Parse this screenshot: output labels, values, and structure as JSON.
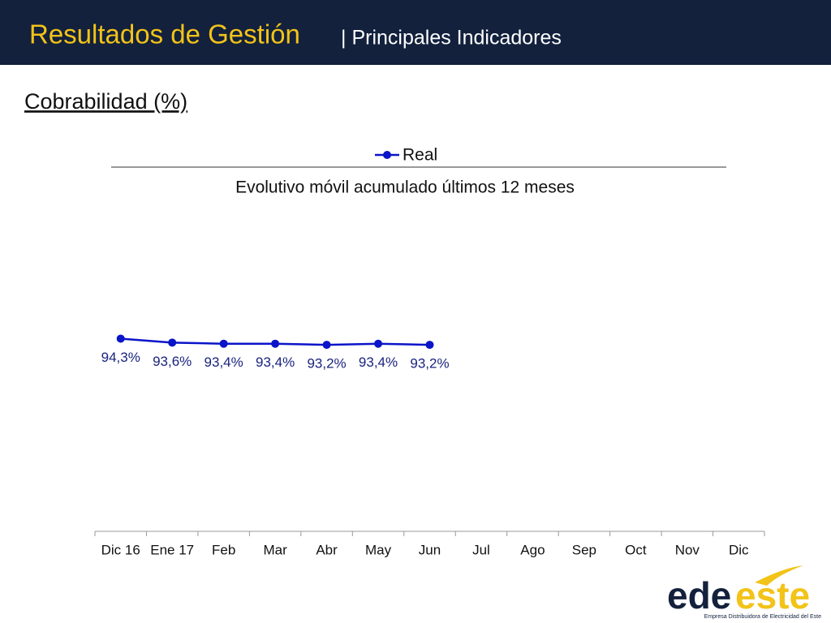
{
  "header": {
    "title": "Resultados de Gestión",
    "subtitle": "| Principales Indicadores"
  },
  "section_title": "Cobrabilidad (%)",
  "chart_data": {
    "type": "line",
    "title": "Evolutivo móvil acumulado últimos 12 meses",
    "categories": [
      "Dic 16",
      "Ene 17",
      "Feb",
      "Mar",
      "Abr",
      "May",
      "Jun",
      "Jul",
      "Ago",
      "Sep",
      "Oct",
      "Nov",
      "Dic"
    ],
    "series": [
      {
        "name": "Real",
        "color": "#0a14c8",
        "values": [
          94.3,
          93.6,
          93.4,
          93.4,
          93.2,
          93.4,
          93.2,
          null,
          null,
          null,
          null,
          null,
          null
        ],
        "value_labels": [
          "94,3%",
          "93,6%",
          "93,4%",
          "93,4%",
          "93,2%",
          "93,4%",
          "93,2%",
          null,
          null,
          null,
          null,
          null,
          null
        ]
      }
    ],
    "ylim": [
      60,
      100
    ],
    "legend": "top"
  },
  "logo": {
    "text_1": "ede",
    "text_2": "este",
    "tagline": "Empresa Distribuidora de Electricidad del Este"
  }
}
